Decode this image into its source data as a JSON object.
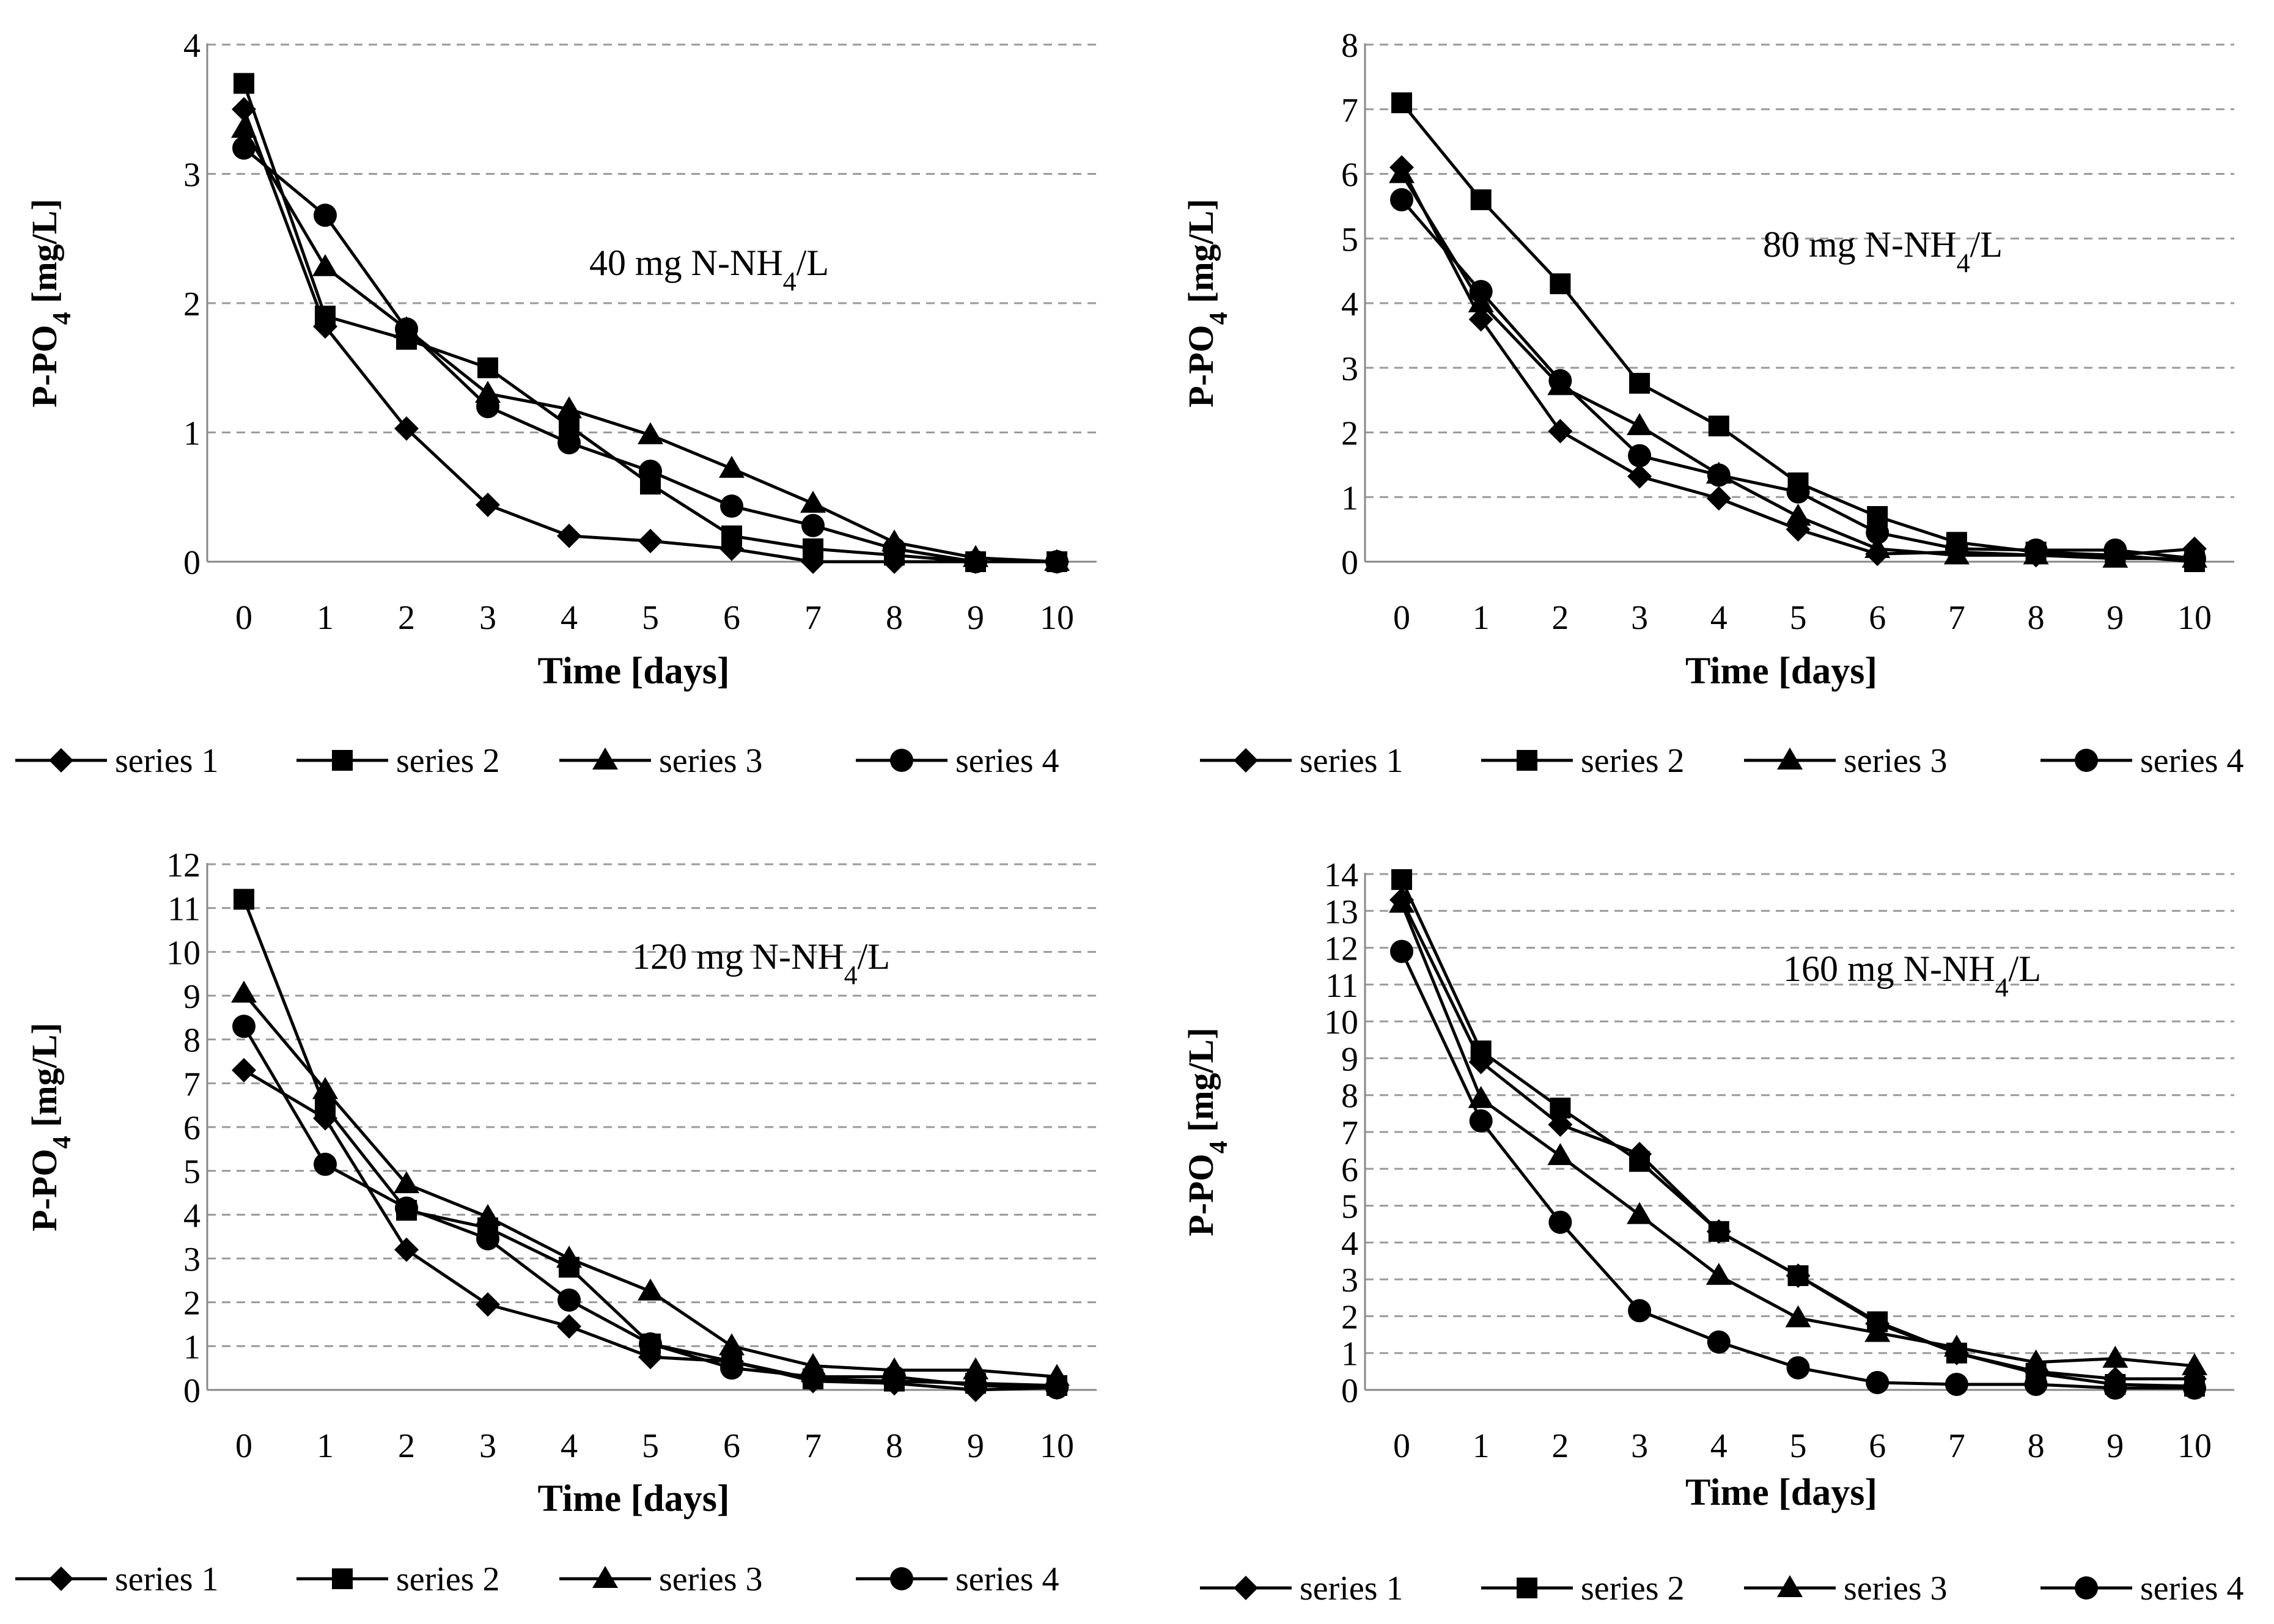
{
  "colors": {
    "line": "#000000",
    "grid": "#9a9a9a",
    "background": "#ffffff"
  },
  "chart_data": [
    {
      "type": "line",
      "annotation": "40 mg N-NH4/L",
      "xlabel": "Time [days]",
      "ylabel": "P-PO4 [mg/L]",
      "x": [
        0,
        1,
        2,
        3,
        4,
        5,
        6,
        7,
        8,
        9,
        10
      ],
      "ylim": [
        0,
        4
      ],
      "yticks": [
        0,
        1,
        2,
        3,
        4
      ],
      "series": [
        {
          "name": "series 1",
          "marker": "diamond",
          "values": [
            3.5,
            1.82,
            1.03,
            0.44,
            0.2,
            0.16,
            0.1,
            0,
            0,
            0,
            0
          ]
        },
        {
          "name": "series 2",
          "marker": "square",
          "values": [
            3.7,
            1.9,
            1.72,
            1.5,
            1.05,
            0.6,
            0.2,
            0.1,
            0.05,
            0,
            0
          ]
        },
        {
          "name": "series 3",
          "marker": "triangle",
          "values": [
            3.35,
            2.28,
            1.8,
            1.3,
            1.18,
            0.98,
            0.72,
            0.45,
            0.15,
            0.03,
            0
          ]
        },
        {
          "name": "series 4",
          "marker": "circle",
          "values": [
            3.2,
            2.68,
            1.8,
            1.2,
            0.92,
            0.7,
            0.43,
            0.28,
            0.1,
            0,
            0
          ]
        }
      ],
      "legend": [
        "series 1",
        "series 2",
        "series 3",
        "series 4"
      ]
    },
    {
      "type": "line",
      "annotation": "80 mg N-NH4/L",
      "xlabel": "Time [days]",
      "ylabel": "P-PO4 [mg/L]",
      "x": [
        0,
        1,
        2,
        3,
        4,
        5,
        6,
        7,
        8,
        9,
        10
      ],
      "ylim": [
        0,
        8
      ],
      "yticks": [
        0,
        1,
        2,
        3,
        4,
        5,
        6,
        7,
        8
      ],
      "series": [
        {
          "name": "series 1",
          "marker": "diamond",
          "values": [
            6.1,
            3.75,
            2.02,
            1.32,
            0.98,
            0.5,
            0.12,
            0.15,
            0.1,
            0.1,
            0.2
          ]
        },
        {
          "name": "series 2",
          "marker": "square",
          "values": [
            7.1,
            5.6,
            4.3,
            2.76,
            2.1,
            1.22,
            0.7,
            0.3,
            0.15,
            0.1,
            0
          ]
        },
        {
          "name": "series 3",
          "marker": "triangle",
          "values": [
            6.0,
            4.0,
            2.72,
            2.1,
            1.35,
            0.7,
            0.2,
            0.1,
            0.1,
            0.05,
            0.05
          ]
        },
        {
          "name": "series 4",
          "marker": "circle",
          "values": [
            5.6,
            4.18,
            2.8,
            1.64,
            1.34,
            1.08,
            0.45,
            0.2,
            0.18,
            0.18,
            0.05
          ]
        }
      ],
      "legend": [
        "series 1",
        "series 2",
        "series 3",
        "series 4"
      ]
    },
    {
      "type": "line",
      "annotation": "120 mg N-NH4/L",
      "xlabel": "Time [days]",
      "ylabel": "P-PO4 [mg/L]",
      "x": [
        0,
        1,
        2,
        3,
        4,
        5,
        6,
        7,
        8,
        9,
        10
      ],
      "ylim": [
        0,
        12
      ],
      "yticks": [
        0,
        1,
        2,
        3,
        4,
        5,
        6,
        7,
        8,
        9,
        10,
        11,
        12
      ],
      "series": [
        {
          "name": "series 1",
          "marker": "diamond",
          "values": [
            7.3,
            6.2,
            3.2,
            1.95,
            1.45,
            0.75,
            0.65,
            0.2,
            0.15,
            0,
            0.05
          ]
        },
        {
          "name": "series 2",
          "marker": "square",
          "values": [
            11.2,
            6.45,
            4.1,
            3.7,
            2.8,
            1.05,
            0.65,
            0.25,
            0.2,
            0.15,
            0.1
          ]
        },
        {
          "name": "series 3",
          "marker": "triangle",
          "values": [
            9.05,
            6.85,
            4.7,
            3.95,
            3.0,
            2.25,
            1.0,
            0.55,
            0.45,
            0.45,
            0.3
          ]
        },
        {
          "name": "series 4",
          "marker": "circle",
          "values": [
            8.3,
            5.15,
            4.15,
            3.45,
            2.05,
            1.05,
            0.5,
            0.3,
            0.3,
            0.1,
            0.05
          ]
        }
      ],
      "legend": [
        "series 1",
        "series 2",
        "series 3",
        "series 4"
      ]
    },
    {
      "type": "line",
      "annotation": "160 mg N-NH4/L",
      "xlabel": "Time [days]",
      "ylabel": "P-PO4 [mg/L]",
      "x": [
        0,
        1,
        2,
        3,
        4,
        5,
        6,
        7,
        8,
        9,
        10
      ],
      "ylim": [
        0,
        14
      ],
      "yticks": [
        0,
        1,
        2,
        3,
        4,
        5,
        6,
        7,
        8,
        9,
        10,
        11,
        12,
        13,
        14
      ],
      "series": [
        {
          "name": "series 1",
          "marker": "diamond",
          "values": [
            13.3,
            8.9,
            7.2,
            6.4,
            4.3,
            3.1,
            1.8,
            1.0,
            0.5,
            0.3,
            0.3
          ]
        },
        {
          "name": "series 2",
          "marker": "square",
          "values": [
            13.85,
            9.2,
            7.65,
            6.2,
            4.3,
            3.1,
            1.85,
            1.0,
            0.45,
            0.15,
            0.1
          ]
        },
        {
          "name": "series 3",
          "marker": "triangle",
          "values": [
            13.2,
            7.9,
            6.35,
            4.75,
            3.1,
            1.95,
            1.55,
            1.15,
            0.75,
            0.85,
            0.65
          ]
        },
        {
          "name": "series 4",
          "marker": "circle",
          "values": [
            11.9,
            7.3,
            4.55,
            2.15,
            1.3,
            0.6,
            0.2,
            0.15,
            0.15,
            0.05,
            0.05
          ]
        }
      ],
      "legend": [
        "series 1",
        "series 2",
        "series 3",
        "series 4"
      ]
    }
  ]
}
